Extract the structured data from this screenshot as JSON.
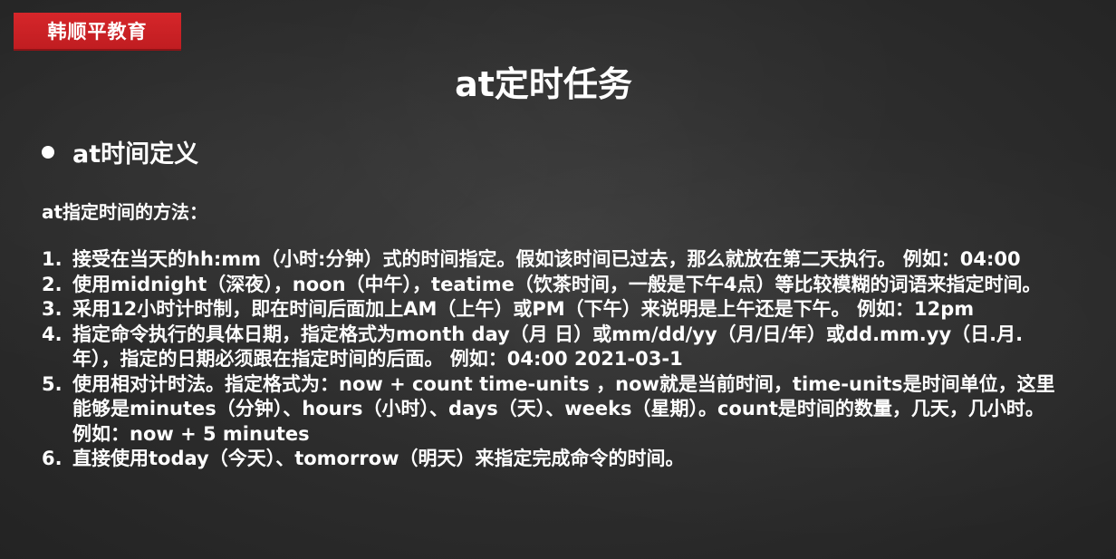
{
  "brand": {
    "name": "韩顺平教育",
    "color": "#c8202a"
  },
  "slide": {
    "title": "at定时任务",
    "section_heading": "at时间定义",
    "intro": "at指定时间的方法：",
    "items": [
      {
        "number": "1.",
        "text": "接受在当天的hh:mm（小时:分钟）式的时间指定。假如该时间已过去，那么就放在第二天执行。 例如：04:00"
      },
      {
        "number": "2.",
        "text": "使用midnight（深夜），noon（中午），teatime（饮茶时间，一般是下午4点）等比较模糊的词语来指定时间。"
      },
      {
        "number": "3.",
        "text": "采用12小时计时制，即在时间后面加上AM（上午）或PM（下午）来说明是上午还是下午。 例如：12pm"
      },
      {
        "number": "4.",
        "text": "指定命令执行的具体日期，指定格式为month day（月 日）或mm/dd/yy（月/日/年）或dd.mm.yy（日.月.年），指定的日期必须跟在指定时间的后面。 例如：04:00 2021-03-1"
      },
      {
        "number": "5.",
        "text": "使用相对计时法。指定格式为：now + count time-units ，now就是当前时间，time-units是时间单位，这里能够是minutes（分钟）、hours（小时）、days（天）、weeks（星期）。count是时间的数量，几天，几小时。 例如：now + 5 minutes"
      },
      {
        "number": "6.",
        "text": "直接使用today（今天）、tomorrow（明天）来指定完成命令的时间。"
      }
    ]
  }
}
